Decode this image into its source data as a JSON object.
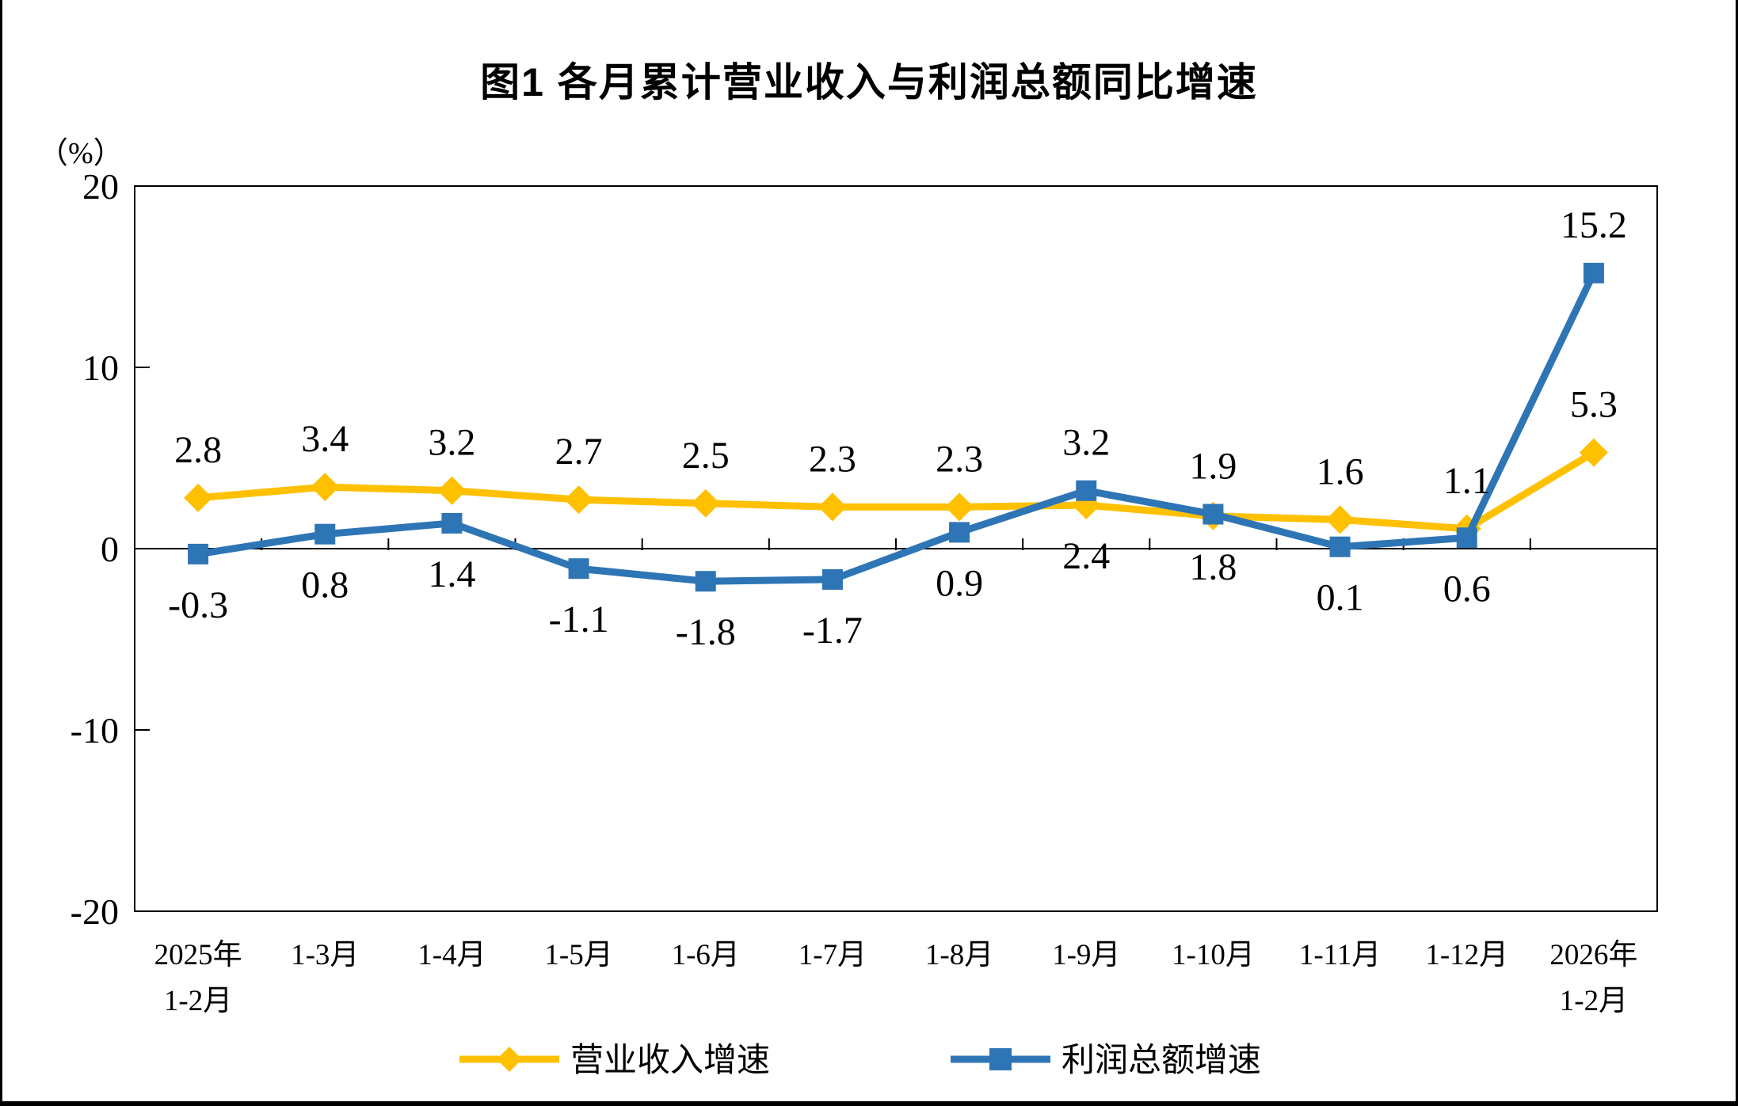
{
  "chart_data": {
    "type": "line",
    "title": "图1  各月累计营业收入与利润总额同比增速",
    "unit_label": "（%）",
    "categories": [
      [
        "2025年",
        "1-2月"
      ],
      [
        "1-3月"
      ],
      [
        "1-4月"
      ],
      [
        "1-5月"
      ],
      [
        "1-6月"
      ],
      [
        "1-7月"
      ],
      [
        "1-8月"
      ],
      [
        "1-9月"
      ],
      [
        "1-10月"
      ],
      [
        "1-11月"
      ],
      [
        "1-12月"
      ],
      [
        "2026年",
        "1-2月"
      ]
    ],
    "ylim": [
      -20,
      20
    ],
    "yticks": [
      20,
      10,
      0,
      -10,
      -20
    ],
    "grid": "off",
    "legend_position": "bottom",
    "series": [
      {
        "id": "revenue-growth",
        "name": "营业收入增速",
        "color": "#FFC000",
        "marker": "diamond",
        "values": [
          2.8,
          3.4,
          3.2,
          2.7,
          2.5,
          2.3,
          2.3,
          2.4,
          1.8,
          1.6,
          1.1,
          5.3
        ],
        "label_side": [
          "above",
          "above",
          "above",
          "above",
          "above",
          "above",
          "above",
          "below",
          "below",
          "above",
          "above",
          "above"
        ]
      },
      {
        "id": "profit-growth",
        "name": "利润总额增速",
        "color": "#2E75B6",
        "marker": "square",
        "values": [
          -0.3,
          0.8,
          1.4,
          -1.1,
          -1.8,
          -1.7,
          0.9,
          3.2,
          1.9,
          0.1,
          0.6,
          15.2
        ],
        "label_side": [
          "below",
          "below",
          "below",
          "below",
          "below",
          "below",
          "below",
          "above",
          "above",
          "below",
          "below",
          "above"
        ]
      }
    ]
  }
}
